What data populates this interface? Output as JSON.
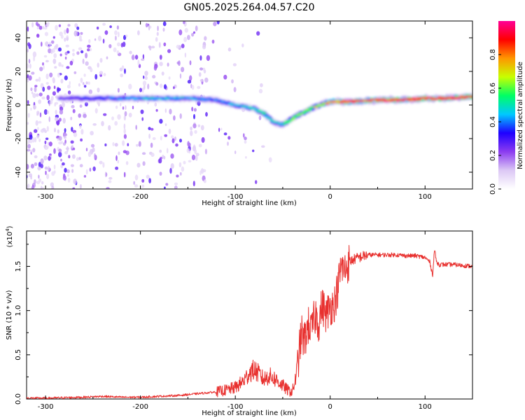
{
  "title": "GN05.2025.264.04.57.C20",
  "chart_data": [
    {
      "type": "heatmap",
      "xlabel": "Height of straight line (km)",
      "ylabel": "Frequency (Hz)",
      "xlim": [
        -320,
        150
      ],
      "ylim": [
        -50,
        50
      ],
      "xticks": [
        -300,
        -200,
        -100,
        0,
        100
      ],
      "yticks": [
        -40,
        -20,
        0,
        20,
        40
      ],
      "colorbar": {
        "label": "Normalized spectral amplitude",
        "range": [
          0,
          1
        ],
        "ticks": [
          "0.0",
          "0.2",
          "0.4",
          "0.6",
          "0.8"
        ],
        "colors": [
          "#ffffff",
          "#dcc8f5",
          "#8c3cf0",
          "#1e00ff",
          "#00c8ff",
          "#00ff64",
          "#c8ff00",
          "#ff9600",
          "#ff0000",
          "#ff0096"
        ]
      },
      "ridge_frequency_hz": {
        "x": [
          -280,
          -250,
          -200,
          -150,
          -120,
          -100,
          -80,
          -70,
          -60,
          -50,
          -40,
          -30,
          -20,
          -10,
          0,
          20,
          50,
          80,
          100,
          120,
          150
        ],
        "y": [
          4,
          4,
          4,
          4,
          3,
          0,
          -2,
          -5,
          -10,
          -12,
          -8,
          -5,
          -2,
          0,
          2,
          2,
          3,
          3,
          4,
          4,
          5
        ]
      },
      "ridge_amplitude": {
        "x": [
          -280,
          -250,
          -200,
          -150,
          -120,
          -100,
          -80,
          -70,
          -60,
          -50,
          -40,
          -30,
          -20,
          -10,
          0,
          20,
          50,
          80,
          100,
          120,
          150
        ],
        "y": [
          0.3,
          0.35,
          0.45,
          0.45,
          0.4,
          0.45,
          0.5,
          0.5,
          0.45,
          0.5,
          0.6,
          0.6,
          0.65,
          0.7,
          0.75,
          0.9,
          0.9,
          0.9,
          0.9,
          0.9,
          0.9
        ]
      }
    },
    {
      "type": "line",
      "xlabel": "Height of straight line (km)",
      "ylabel": "SNR (10 * v/v)",
      "y_multiplier": "(x10",
      "y_multiplier_exp": "4",
      "y_multiplier_close": ")",
      "xlim": [
        -320,
        150
      ],
      "ylim": [
        0,
        1.9
      ],
      "xticks": [
        -300,
        -200,
        -100,
        0,
        100
      ],
      "yticks": [
        "0.0",
        "0.5",
        "1.0",
        "1.5"
      ],
      "color": "#e8312f",
      "series": [
        {
          "x": [
            -320,
            -300,
            -280,
            -260,
            -240,
            -220,
            -200,
            -180,
            -160,
            -140,
            -120,
            -110,
            -100,
            -95,
            -90,
            -85,
            -80,
            -75,
            -70,
            -65,
            -60,
            -55,
            -50,
            -45,
            -40,
            -37,
            -34,
            -32,
            -30,
            -28,
            -26,
            -24,
            -22,
            -20,
            -17,
            -15,
            -12,
            -10,
            -8,
            -6,
            -4,
            -2,
            0,
            2,
            5,
            8,
            10,
            12,
            15,
            20,
            25,
            30,
            40,
            50,
            60,
            70,
            80,
            90,
            100,
            105,
            108,
            110,
            112,
            115,
            120,
            130,
            140,
            150
          ],
          "y": [
            0.01,
            0.01,
            0.015,
            0.02,
            0.03,
            0.02,
            0.02,
            0.03,
            0.04,
            0.06,
            0.08,
            0.1,
            0.13,
            0.17,
            0.22,
            0.3,
            0.33,
            0.28,
            0.22,
            0.26,
            0.24,
            0.2,
            0.15,
            0.1,
            0.08,
            0.2,
            0.4,
            0.6,
            0.75,
            0.65,
            0.7,
            0.8,
            0.85,
            0.75,
            0.9,
            0.95,
            0.85,
            1.0,
            1.05,
            1.0,
            0.95,
            1.0,
            1.05,
            1.05,
            1.1,
            1.25,
            1.4,
            1.5,
            1.45,
            1.55,
            1.58,
            1.6,
            1.63,
            1.63,
            1.63,
            1.63,
            1.62,
            1.62,
            1.6,
            1.55,
            1.4,
            1.7,
            1.55,
            1.52,
            1.52,
            1.52,
            1.51,
            1.5
          ]
        }
      ]
    }
  ]
}
